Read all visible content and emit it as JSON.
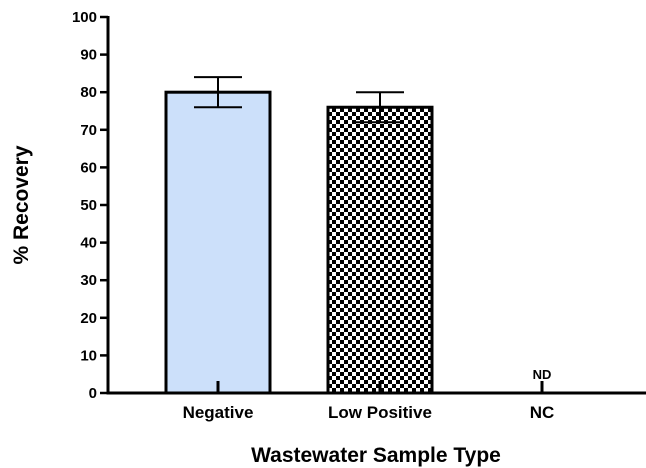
{
  "chart_data": {
    "type": "bar",
    "categories": [
      "Negative",
      "Low Positive",
      "NC"
    ],
    "values": [
      80,
      76,
      0
    ],
    "error_bars": [
      4,
      4,
      null
    ],
    "annotations": [
      {
        "category": "NC",
        "text": "ND"
      }
    ],
    "bar_styles": [
      "solid-light-blue",
      "checkerboard",
      "none"
    ],
    "colors": {
      "negative_fill": "#cce0fa",
      "checker_dark": "#000000",
      "checker_light": "#ffffff"
    },
    "xlabel": "Wastewater Sample Type",
    "ylabel": "% Recovery",
    "ylim": [
      0,
      100
    ],
    "yticks": [
      0,
      10,
      20,
      30,
      40,
      50,
      60,
      70,
      80,
      90,
      100
    ],
    "grid": false
  }
}
